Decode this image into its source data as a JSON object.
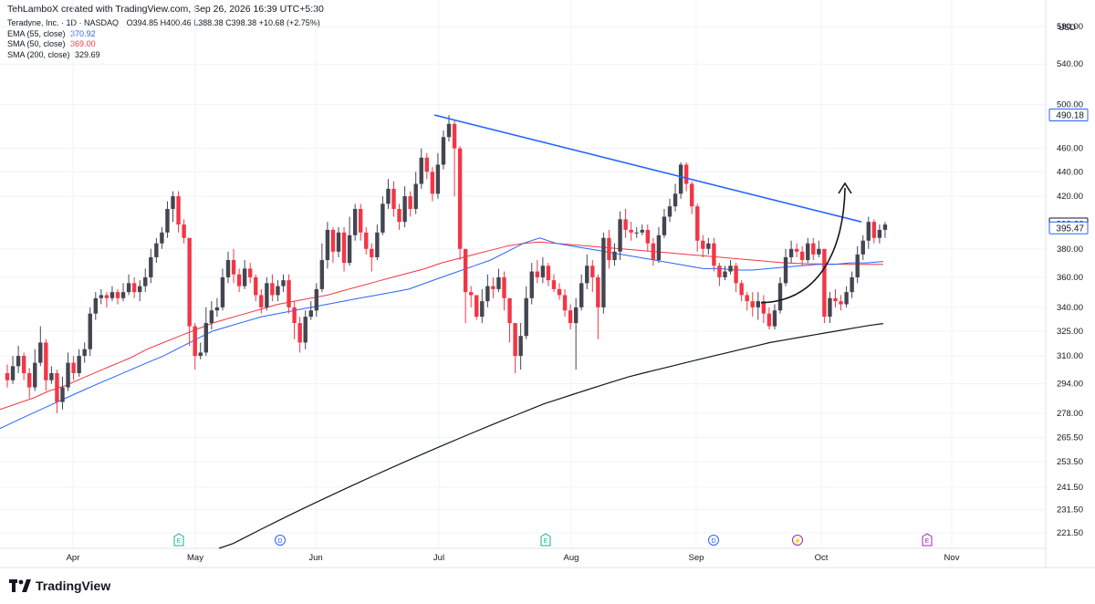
{
  "header": {
    "text": "TehLamboX created with TradingView.com, Sep 26, 2026 16:39 UTC+5:30"
  },
  "legend": {
    "symbol": "Teradyne, Inc. · 1D · NASDAQ",
    "ohlc": "O394.85  H400.46  L388.38  C398.38  +10.68 (+2.75%)",
    "ema55": {
      "label": "EMA (55, close)",
      "value": "370.92",
      "color": "#2962ff"
    },
    "sma50": {
      "label": "SMA (50, close)",
      "value": "369.00",
      "color": "#f23645"
    },
    "sma200": {
      "label": "SMA (200, close)",
      "value": "329.69",
      "color": "#131722"
    }
  },
  "currency": "USD",
  "brand": "TradingView",
  "colors": {
    "up": "#434651",
    "down": "#f23645",
    "trend": "#2962ff",
    "grid": "#f0f3fa"
  },
  "chart_data": {
    "type": "candlestick",
    "y_scale": "log",
    "ylim": [
      215,
      610
    ],
    "y_ticks": [
      "580.00",
      "540.00",
      "500.00",
      "460.00",
      "440.00",
      "420.00",
      "380.00",
      "360.00",
      "340.00",
      "325.00",
      "310.00",
      "294.00",
      "278.00",
      "265.50",
      "253.50",
      "241.50",
      "231.50",
      "221.50"
    ],
    "x_ticks": [
      "Apr",
      "May",
      "Jun",
      "Jul",
      "Aug",
      "Sep",
      "Oct",
      "Nov"
    ],
    "price_labels": [
      {
        "text": "490.18",
        "value": 490.18,
        "color": "#2962ff"
      },
      {
        "text": "398.38",
        "value": 398.38,
        "color": "#131722"
      },
      {
        "text": "395.47",
        "value": 395.47,
        "color": "#2962ff"
      }
    ],
    "event_markers": [
      {
        "label": "E",
        "x": 196,
        "color": "#22ab94"
      },
      {
        "label": "D",
        "x": 307,
        "color": "#2962ff"
      },
      {
        "label": "E",
        "x": 598,
        "color": "#22ab94"
      },
      {
        "label": "D",
        "x": 782,
        "color": "#2962ff"
      },
      {
        "label": "⚡",
        "x": 874,
        "color": "#9c27b0"
      },
      {
        "label": "E",
        "x": 1016,
        "color": "#9c27b0"
      }
    ],
    "candles": [
      [
        300,
        296,
        305,
        292
      ],
      [
        296,
        304,
        310,
        294
      ],
      [
        304,
        310,
        316,
        300
      ],
      [
        310,
        300,
        312,
        296
      ],
      [
        300,
        292,
        303,
        286
      ],
      [
        292,
        306,
        314,
        290
      ],
      [
        306,
        318,
        328,
        304
      ],
      [
        318,
        296,
        320,
        290
      ],
      [
        296,
        300,
        304,
        294
      ],
      [
        300,
        284,
        302,
        278
      ],
      [
        284,
        292,
        298,
        280
      ],
      [
        292,
        306,
        312,
        290
      ],
      [
        306,
        300,
        310,
        296
      ],
      [
        300,
        310,
        314,
        298
      ],
      [
        310,
        314,
        318,
        306
      ],
      [
        314,
        336,
        340,
        310
      ],
      [
        336,
        346,
        350,
        332
      ],
      [
        346,
        348,
        352,
        342
      ],
      [
        348,
        346,
        350,
        340
      ],
      [
        346,
        350,
        354,
        344
      ],
      [
        350,
        346,
        352,
        342
      ],
      [
        346,
        350,
        356,
        344
      ],
      [
        350,
        356,
        362,
        348
      ],
      [
        356,
        350,
        360,
        346
      ],
      [
        350,
        354,
        358,
        344
      ],
      [
        354,
        360,
        366,
        350
      ],
      [
        360,
        374,
        380,
        356
      ],
      [
        374,
        384,
        388,
        370
      ],
      [
        384,
        392,
        396,
        380
      ],
      [
        392,
        410,
        416,
        388
      ],
      [
        410,
        420,
        424,
        400
      ],
      [
        420,
        398,
        424,
        392
      ],
      [
        398,
        388,
        402,
        384
      ],
      [
        388,
        328,
        334,
        316
      ],
      [
        328,
        310,
        330,
        302
      ],
      [
        310,
        312,
        318,
        308
      ],
      [
        312,
        330,
        340,
        310
      ],
      [
        330,
        338,
        344,
        326
      ],
      [
        338,
        340,
        346,
        334
      ],
      [
        340,
        360,
        366,
        338
      ],
      [
        360,
        372,
        378,
        356
      ],
      [
        372,
        362,
        380,
        356
      ],
      [
        362,
        354,
        366,
        350
      ],
      [
        354,
        366,
        372,
        352
      ],
      [
        366,
        360,
        370,
        356
      ],
      [
        360,
        348,
        362,
        344
      ],
      [
        348,
        340,
        352,
        336
      ],
      [
        340,
        356,
        360,
        338
      ],
      [
        356,
        348,
        362,
        344
      ],
      [
        348,
        354,
        358,
        344
      ],
      [
        354,
        358,
        362,
        350
      ],
      [
        358,
        340,
        362,
        336
      ],
      [
        340,
        330,
        344,
        320
      ],
      [
        330,
        318,
        334,
        312
      ],
      [
        318,
        334,
        338,
        314
      ],
      [
        334,
        338,
        344,
        332
      ],
      [
        338,
        352,
        356,
        334
      ],
      [
        352,
        372,
        384,
        350
      ],
      [
        372,
        394,
        400,
        366
      ],
      [
        394,
        378,
        396,
        370
      ],
      [
        378,
        392,
        396,
        374
      ],
      [
        392,
        370,
        396,
        364
      ],
      [
        370,
        390,
        404,
        368
      ],
      [
        390,
        410,
        414,
        386
      ],
      [
        410,
        392,
        414,
        386
      ],
      [
        392,
        380,
        396,
        376
      ],
      [
        380,
        374,
        384,
        364
      ],
      [
        374,
        392,
        398,
        372
      ],
      [
        392,
        414,
        420,
        390
      ],
      [
        414,
        426,
        434,
        410
      ],
      [
        426,
        410,
        432,
        404
      ],
      [
        410,
        400,
        414,
        394
      ],
      [
        400,
        420,
        428,
        396
      ],
      [
        420,
        410,
        424,
        404
      ],
      [
        410,
        430,
        440,
        406
      ],
      [
        430,
        452,
        460,
        426
      ],
      [
        452,
        440,
        456,
        434
      ],
      [
        440,
        422,
        444,
        416
      ],
      [
        422,
        446,
        456,
        418
      ],
      [
        446,
        470,
        476,
        442
      ],
      [
        470,
        482,
        490,
        466
      ],
      [
        482,
        460,
        486,
        420
      ],
      [
        460,
        380,
        462,
        372
      ],
      [
        380,
        350,
        366,
        330
      ],
      [
        350,
        348,
        354,
        340
      ],
      [
        348,
        334,
        344,
        332
      ],
      [
        334,
        344,
        352,
        330
      ],
      [
        344,
        354,
        362,
        340
      ],
      [
        354,
        352,
        360,
        346
      ],
      [
        352,
        360,
        366,
        350
      ],
      [
        360,
        346,
        364,
        338
      ],
      [
        346,
        330,
        336,
        318
      ],
      [
        330,
        310,
        312,
        300
      ],
      [
        310,
        322,
        330,
        302
      ],
      [
        322,
        346,
        354,
        320
      ],
      [
        346,
        364,
        370,
        342
      ],
      [
        364,
        360,
        372,
        356
      ],
      [
        360,
        368,
        374,
        356
      ],
      [
        368,
        358,
        370,
        354
      ],
      [
        358,
        352,
        362,
        350
      ],
      [
        352,
        348,
        356,
        345
      ],
      [
        348,
        338,
        352,
        334
      ],
      [
        338,
        330,
        342,
        326
      ],
      [
        330,
        340,
        346,
        302
      ],
      [
        340,
        356,
        362,
        338
      ],
      [
        356,
        368,
        376,
        352
      ],
      [
        368,
        360,
        372,
        350
      ],
      [
        360,
        340,
        362,
        320
      ],
      [
        340,
        388,
        392,
        336
      ],
      [
        388,
        372,
        394,
        366
      ],
      [
        372,
        378,
        384,
        368
      ],
      [
        378,
        402,
        408,
        372
      ],
      [
        402,
        394,
        410,
        388
      ],
      [
        394,
        392,
        400,
        386
      ],
      [
        392,
        392,
        396,
        388
      ],
      [
        392,
        394,
        398,
        390
      ],
      [
        394,
        384,
        398,
        378
      ],
      [
        384,
        372,
        388,
        368
      ],
      [
        372,
        390,
        396,
        370
      ],
      [
        390,
        404,
        410,
        388
      ],
      [
        404,
        412,
        418,
        400
      ],
      [
        412,
        422,
        430,
        408
      ],
      [
        422,
        446,
        448,
        418
      ],
      [
        446,
        430,
        448,
        424
      ],
      [
        430,
        412,
        432,
        406
      ],
      [
        412,
        386,
        414,
        378
      ],
      [
        386,
        380,
        390,
        374
      ],
      [
        380,
        384,
        388,
        376
      ],
      [
        384,
        368,
        388,
        364
      ],
      [
        368,
        360,
        370,
        354
      ],
      [
        360,
        364,
        368,
        358
      ],
      [
        364,
        368,
        372,
        362
      ],
      [
        368,
        356,
        370,
        350
      ],
      [
        356,
        348,
        358,
        344
      ],
      [
        348,
        344,
        350,
        338
      ],
      [
        344,
        340,
        350,
        334
      ],
      [
        340,
        344,
        350,
        332
      ],
      [
        344,
        336,
        348,
        330
      ],
      [
        336,
        328,
        340,
        326
      ],
      [
        328,
        338,
        342,
        326
      ],
      [
        338,
        356,
        360,
        336
      ],
      [
        356,
        374,
        380,
        354
      ],
      [
        374,
        380,
        386,
        370
      ],
      [
        380,
        378,
        384,
        374
      ],
      [
        378,
        372,
        382,
        368
      ],
      [
        372,
        384,
        388,
        370
      ],
      [
        384,
        376,
        388,
        372
      ],
      [
        376,
        380,
        386,
        374
      ],
      [
        380,
        334,
        340,
        330
      ],
      [
        334,
        346,
        350,
        330
      ],
      [
        346,
        344,
        352,
        340
      ],
      [
        344,
        342,
        348,
        338
      ],
      [
        342,
        350,
        354,
        340
      ],
      [
        350,
        360,
        364,
        346
      ],
      [
        360,
        376,
        382,
        356
      ],
      [
        376,
        386,
        390,
        372
      ],
      [
        386,
        400,
        404,
        380
      ],
      [
        400,
        388,
        402,
        384
      ],
      [
        388,
        394,
        398,
        384
      ],
      [
        394,
        398,
        400,
        388
      ]
    ],
    "candles_fields": [
      "open",
      "close",
      "high",
      "low"
    ],
    "ema55": [
      270,
      274,
      278,
      282,
      286,
      290,
      294,
      298,
      302,
      306,
      310,
      315,
      320,
      325,
      328,
      331,
      334,
      336,
      338,
      340,
      342,
      344,
      346,
      348,
      350,
      352,
      356,
      360,
      364,
      368,
      372,
      378,
      384,
      388,
      384,
      382,
      380,
      378,
      376,
      374,
      372,
      370,
      368,
      366,
      366,
      365,
      365,
      366,
      367,
      368,
      369,
      369,
      370,
      370,
      371
    ],
    "sma50": [
      280,
      283,
      286,
      290,
      293,
      297,
      301,
      305,
      309,
      314,
      318,
      322,
      326,
      330,
      333,
      336,
      339,
      342,
      344,
      346,
      348,
      351,
      354,
      357,
      360,
      363,
      366,
      370,
      373,
      376,
      379,
      382,
      384,
      385,
      384,
      383,
      382,
      381,
      380,
      379,
      378,
      377,
      376,
      375,
      374,
      373,
      372,
      371,
      370,
      369.5,
      369.3,
      369.1,
      369.0,
      369.0,
      369.0
    ],
    "sma200": [
      215,
      217,
      220,
      223,
      226,
      229,
      232,
      235,
      238,
      241,
      244,
      247,
      250,
      253,
      256,
      259,
      262,
      265,
      268,
      271,
      274,
      277,
      280,
      283,
      285.5,
      288,
      290.5,
      293,
      295.5,
      298,
      300,
      302,
      304,
      306,
      308,
      310,
      312,
      314,
      316,
      318,
      319.5,
      321,
      322.5,
      324,
      325.5,
      327,
      328.5,
      329.69
    ]
  }
}
